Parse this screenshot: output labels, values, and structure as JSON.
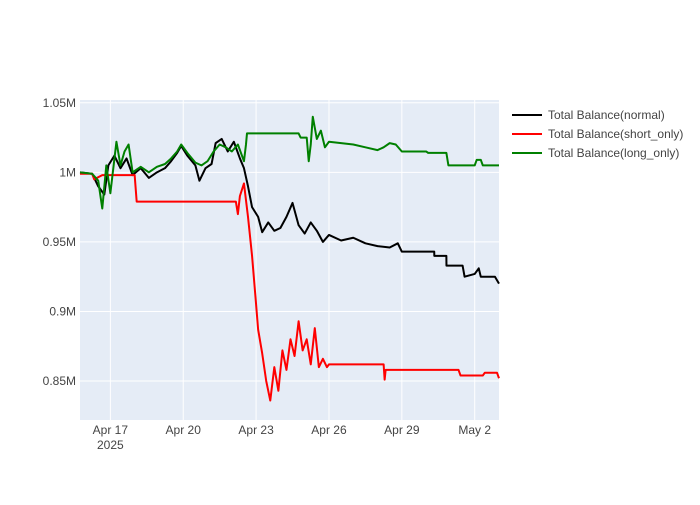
{
  "chart_data": {
    "type": "line",
    "background": "#ffffff",
    "plot_background": "#e5ecf6",
    "grid": true,
    "legend_placement": "right",
    "xlim": [
      "2025-04-15T18:00",
      "2025-05-03T00:00"
    ],
    "ylim": [
      822000,
      1052000
    ],
    "y_ticks": [
      {
        "value": 850000,
        "label": "0.85M"
      },
      {
        "value": 900000,
        "label": "0.9M"
      },
      {
        "value": 950000,
        "label": "0.95M"
      },
      {
        "value": 1000000,
        "label": "1M"
      },
      {
        "value": 1050000,
        "label": "1.05M"
      }
    ],
    "x_ticks": [
      {
        "value": "2025-04-17",
        "label": "Apr 17",
        "sublabel": "2025"
      },
      {
        "value": "2025-04-20",
        "label": "Apr 20",
        "sublabel": ""
      },
      {
        "value": "2025-04-23",
        "label": "Apr 23",
        "sublabel": ""
      },
      {
        "value": "2025-04-26",
        "label": "Apr 26",
        "sublabel": ""
      },
      {
        "value": "2025-04-29",
        "label": "Apr 29",
        "sublabel": ""
      },
      {
        "value": "2025-05-02",
        "label": "May 2",
        "sublabel": ""
      }
    ],
    "series": [
      {
        "name": "Total Balance(normal)",
        "color": "#000000",
        "points": [
          [
            "2025-04-15T18:00",
            1000000
          ],
          [
            "2025-04-16T06:00",
            999000
          ],
          [
            "2025-04-16T12:00",
            990000
          ],
          [
            "2025-04-16T18:00",
            984000
          ],
          [
            "2025-04-16T22:00",
            1005000
          ],
          [
            "2025-04-17T04:00",
            1012000
          ],
          [
            "2025-04-17T10:00",
            1003000
          ],
          [
            "2025-04-17T16:00",
            1010000
          ],
          [
            "2025-04-17T22:00",
            998000
          ],
          [
            "2025-04-18T06:00",
            1003000
          ],
          [
            "2025-04-18T14:00",
            996000
          ],
          [
            "2025-04-18T22:00",
            1000000
          ],
          [
            "2025-04-19T06:00",
            1003000
          ],
          [
            "2025-04-19T12:00",
            1008000
          ],
          [
            "2025-04-19T18:00",
            1014000
          ],
          [
            "2025-04-19T22:00",
            1019000
          ],
          [
            "2025-04-20T04:00",
            1012000
          ],
          [
            "2025-04-20T12:00",
            1005000
          ],
          [
            "2025-04-20T16:00",
            994000
          ],
          [
            "2025-04-20T22:00",
            1003000
          ],
          [
            "2025-04-21T04:00",
            1006000
          ],
          [
            "2025-04-21T08:00",
            1021000
          ],
          [
            "2025-04-21T14:00",
            1024000
          ],
          [
            "2025-04-21T20:00",
            1015000
          ],
          [
            "2025-04-22T02:00",
            1022000
          ],
          [
            "2025-04-22T08:00",
            1010000
          ],
          [
            "2025-04-22T12:00",
            1003000
          ],
          [
            "2025-04-22T16:00",
            990000
          ],
          [
            "2025-04-22T20:00",
            975000
          ],
          [
            "2025-04-23T02:00",
            968000
          ],
          [
            "2025-04-23T06:00",
            957000
          ],
          [
            "2025-04-23T12:00",
            964000
          ],
          [
            "2025-04-23T18:00",
            958000
          ],
          [
            "2025-04-24T00:00",
            960000
          ],
          [
            "2025-04-24T06:00",
            968000
          ],
          [
            "2025-04-24T12:00",
            978000
          ],
          [
            "2025-04-24T18:00",
            962000
          ],
          [
            "2025-04-25T00:00",
            956000
          ],
          [
            "2025-04-25T06:00",
            964000
          ],
          [
            "2025-04-25T12:00",
            958000
          ],
          [
            "2025-04-25T18:00",
            950000
          ],
          [
            "2025-04-26T00:00",
            955000
          ],
          [
            "2025-04-26T12:00",
            951000
          ],
          [
            "2025-04-27T00:00",
            953000
          ],
          [
            "2025-04-27T12:00",
            949000
          ],
          [
            "2025-04-28T00:00",
            947000
          ],
          [
            "2025-04-28T12:00",
            946000
          ],
          [
            "2025-04-28T20:00",
            949000
          ],
          [
            "2025-04-29T00:00",
            943000
          ],
          [
            "2025-04-29T12:00",
            943000
          ],
          [
            "2025-04-30T08:00",
            943000
          ],
          [
            "2025-04-30T08:05",
            940000
          ],
          [
            "2025-04-30T20:00",
            940000
          ],
          [
            "2025-04-30T20:05",
            933000
          ],
          [
            "2025-05-01T12:00",
            933000
          ],
          [
            "2025-05-01T14:00",
            925000
          ],
          [
            "2025-05-02T00:00",
            927000
          ],
          [
            "2025-05-02T04:00",
            931000
          ],
          [
            "2025-05-02T06:00",
            925000
          ],
          [
            "2025-05-02T20:00",
            925000
          ],
          [
            "2025-05-03T00:00",
            920000
          ]
        ]
      },
      {
        "name": "Total Balance(short_only)",
        "color": "#ff0000",
        "points": [
          [
            "2025-04-15T18:00",
            999000
          ],
          [
            "2025-04-16T06:00",
            999000
          ],
          [
            "2025-04-16T08:00",
            995000
          ],
          [
            "2025-04-16T16:00",
            998000
          ],
          [
            "2025-04-17T12:00",
            998000
          ],
          [
            "2025-04-18T00:00",
            998000
          ],
          [
            "2025-04-18T02:00",
            979000
          ],
          [
            "2025-04-22T04:00",
            979000
          ],
          [
            "2025-04-22T06:00",
            970000
          ],
          [
            "2025-04-22T08:00",
            983000
          ],
          [
            "2025-04-22T12:00",
            992000
          ],
          [
            "2025-04-22T16:00",
            968000
          ],
          [
            "2025-04-22T20:00",
            940000
          ],
          [
            "2025-04-23T00:00",
            905000
          ],
          [
            "2025-04-23T02:00",
            887000
          ],
          [
            "2025-04-23T06:00",
            870000
          ],
          [
            "2025-04-23T10:00",
            850000
          ],
          [
            "2025-04-23T14:00",
            836000
          ],
          [
            "2025-04-23T18:00",
            860000
          ],
          [
            "2025-04-23T22:00",
            843000
          ],
          [
            "2025-04-24T02:00",
            872000
          ],
          [
            "2025-04-24T06:00",
            858000
          ],
          [
            "2025-04-24T10:00",
            880000
          ],
          [
            "2025-04-24T14:00",
            868000
          ],
          [
            "2025-04-24T18:00",
            893000
          ],
          [
            "2025-04-24T22:00",
            872000
          ],
          [
            "2025-04-25T02:00",
            880000
          ],
          [
            "2025-04-25T06:00",
            862000
          ],
          [
            "2025-04-25T10:00",
            888000
          ],
          [
            "2025-04-25T14:00",
            860000
          ],
          [
            "2025-04-25T18:00",
            866000
          ],
          [
            "2025-04-25T22:00",
            860000
          ],
          [
            "2025-04-26T00:00",
            862000
          ],
          [
            "2025-04-28T06:00",
            862000
          ],
          [
            "2025-04-28T07:00",
            851000
          ],
          [
            "2025-04-28T08:00",
            858000
          ],
          [
            "2025-05-01T08:00",
            858000
          ],
          [
            "2025-05-01T10:00",
            854000
          ],
          [
            "2025-05-02T08:00",
            854000
          ],
          [
            "2025-05-02T10:00",
            856000
          ],
          [
            "2025-05-02T22:00",
            856000
          ],
          [
            "2025-05-03T00:00",
            852000
          ]
        ]
      },
      {
        "name": "Total Balance(long_only)",
        "color": "#008000",
        "points": [
          [
            "2025-04-15T18:00",
            1000000
          ],
          [
            "2025-04-16T06:00",
            999000
          ],
          [
            "2025-04-16T12:00",
            994000
          ],
          [
            "2025-04-16T16:00",
            974000
          ],
          [
            "2025-04-16T20:00",
            1005000
          ],
          [
            "2025-04-17T00:00",
            985000
          ],
          [
            "2025-04-17T06:00",
            1022000
          ],
          [
            "2025-04-17T10:00",
            1005000
          ],
          [
            "2025-04-17T14:00",
            1015000
          ],
          [
            "2025-04-17T18:00",
            1020000
          ],
          [
            "2025-04-17T22:00",
            1000000
          ],
          [
            "2025-04-18T06:00",
            1004000
          ],
          [
            "2025-04-18T14:00",
            1000000
          ],
          [
            "2025-04-18T22:00",
            1004000
          ],
          [
            "2025-04-19T06:00",
            1006000
          ],
          [
            "2025-04-19T12:00",
            1010000
          ],
          [
            "2025-04-19T18:00",
            1015000
          ],
          [
            "2025-04-19T22:00",
            1020000
          ],
          [
            "2025-04-20T04:00",
            1014000
          ],
          [
            "2025-04-20T12:00",
            1007000
          ],
          [
            "2025-04-20T18:00",
            1005000
          ],
          [
            "2025-04-21T00:00",
            1008000
          ],
          [
            "2025-04-21T06:00",
            1015000
          ],
          [
            "2025-04-21T12:00",
            1020000
          ],
          [
            "2025-04-21T18:00",
            1018000
          ],
          [
            "2025-04-22T00:00",
            1015000
          ],
          [
            "2025-04-22T06:00",
            1020000
          ],
          [
            "2025-04-22T12:00",
            1008000
          ],
          [
            "2025-04-22T14:00",
            1020000
          ],
          [
            "2025-04-22T15:00",
            1028000
          ],
          [
            "2025-04-24T18:00",
            1028000
          ],
          [
            "2025-04-24T20:00",
            1025000
          ],
          [
            "2025-04-25T02:00",
            1025000
          ],
          [
            "2025-04-25T04:00",
            1008000
          ],
          [
            "2025-04-25T06:00",
            1020000
          ],
          [
            "2025-04-25T08:00",
            1040000
          ],
          [
            "2025-04-25T12:00",
            1024000
          ],
          [
            "2025-04-25T16:00",
            1030000
          ],
          [
            "2025-04-25T20:00",
            1018000
          ],
          [
            "2025-04-26T00:00",
            1022000
          ],
          [
            "2025-04-26T12:00",
            1021000
          ],
          [
            "2025-04-27T00:00",
            1020000
          ],
          [
            "2025-04-27T12:00",
            1018000
          ],
          [
            "2025-04-28T00:00",
            1016000
          ],
          [
            "2025-04-28T06:00",
            1018000
          ],
          [
            "2025-04-28T12:00",
            1021000
          ],
          [
            "2025-04-28T18:00",
            1020000
          ],
          [
            "2025-04-29T00:00",
            1015000
          ],
          [
            "2025-04-30T00:00",
            1015000
          ],
          [
            "2025-04-30T02:00",
            1014000
          ],
          [
            "2025-04-30T20:00",
            1014000
          ],
          [
            "2025-04-30T22:00",
            1005000
          ],
          [
            "2025-05-02T00:00",
            1005000
          ],
          [
            "2025-05-02T02:00",
            1009000
          ],
          [
            "2025-05-02T06:00",
            1009000
          ],
          [
            "2025-05-02T08:00",
            1005000
          ],
          [
            "2025-05-03T00:00",
            1005000
          ]
        ]
      }
    ]
  }
}
